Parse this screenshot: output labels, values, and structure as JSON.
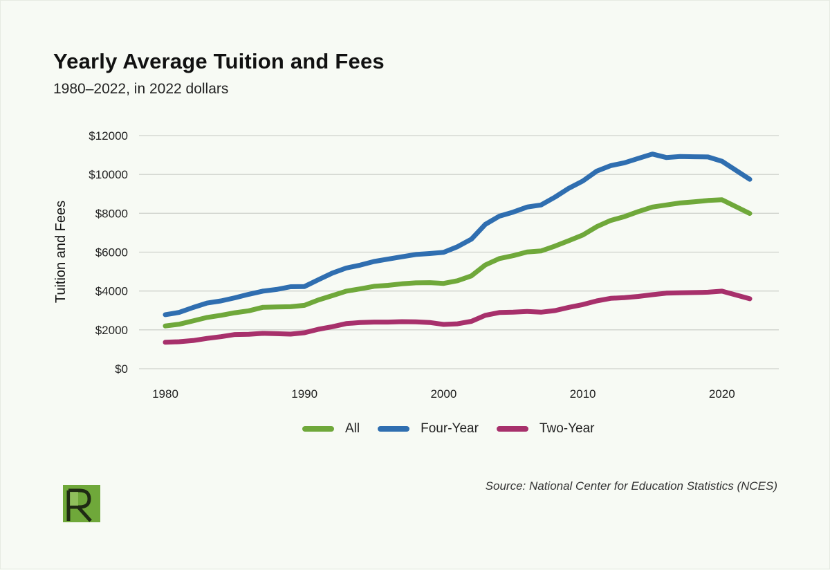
{
  "header": {
    "title": "Yearly Average Tuition and Fees",
    "subtitle": "1980–2022, in 2022 dollars"
  },
  "source": "Source: National Center for Education Statistics (NCES)",
  "logo": {
    "letter": "R",
    "color": "#6fa83a"
  },
  "colors": {
    "background": "#f7faf4",
    "grid": "#cfd2cc"
  },
  "chart_data": {
    "type": "line",
    "title": "Yearly Average Tuition and Fees",
    "subtitle": "1980–2022, in 2022 dollars",
    "xlabel": "",
    "ylabel": "Tuition and Fees",
    "xlim": [
      1980,
      2022
    ],
    "ylim": [
      0,
      12000
    ],
    "xticks": [
      1980,
      1990,
      2000,
      2010,
      2020
    ],
    "xtick_labels": [
      "1980",
      "1990",
      "2000",
      "2010",
      "2020"
    ],
    "yticks": [
      0,
      2000,
      4000,
      6000,
      8000,
      10000,
      12000
    ],
    "ytick_labels": [
      "$0",
      "$2000",
      "$4000",
      "$6000",
      "$8000",
      "$10000",
      "$12000"
    ],
    "grid": "horizontal",
    "legend_position": "bottom-center",
    "x": [
      1980,
      1981,
      1982,
      1983,
      1984,
      1985,
      1986,
      1987,
      1988,
      1989,
      1990,
      1991,
      1992,
      1993,
      1994,
      1995,
      1996,
      1997,
      1998,
      1999,
      2000,
      2001,
      2002,
      2003,
      2004,
      2005,
      2006,
      2007,
      2008,
      2009,
      2010,
      2011,
      2012,
      2013,
      2014,
      2015,
      2016,
      2017,
      2018,
      2019,
      2020,
      2022
    ],
    "series": [
      {
        "name": "All",
        "color": "#6fa83a",
        "values": [
          2200,
          2290,
          2460,
          2640,
          2750,
          2880,
          2980,
          3160,
          3180,
          3190,
          3260,
          3540,
          3760,
          3990,
          4110,
          4240,
          4290,
          4370,
          4420,
          4430,
          4390,
          4530,
          4780,
          5340,
          5670,
          5820,
          6010,
          6060,
          6310,
          6590,
          6880,
          7310,
          7630,
          7830,
          8090,
          8320,
          8430,
          8530,
          8590,
          8660,
          8700,
          7990
        ]
      },
      {
        "name": "Four-Year",
        "color": "#2f6eb0",
        "values": [
          2780,
          2900,
          3150,
          3380,
          3490,
          3650,
          3830,
          3990,
          4080,
          4220,
          4230,
          4580,
          4920,
          5180,
          5330,
          5520,
          5640,
          5760,
          5880,
          5930,
          5990,
          6280,
          6670,
          7430,
          7850,
          8060,
          8320,
          8430,
          8830,
          9290,
          9660,
          10170,
          10450,
          10600,
          10830,
          11050,
          10870,
          10920,
          10910,
          10900,
          10680,
          9750
        ]
      },
      {
        "name": "Two-Year",
        "color": "#a7306b",
        "values": [
          1360,
          1390,
          1450,
          1560,
          1650,
          1760,
          1770,
          1820,
          1800,
          1780,
          1850,
          2030,
          2160,
          2320,
          2380,
          2400,
          2400,
          2420,
          2410,
          2380,
          2280,
          2310,
          2440,
          2750,
          2890,
          2910,
          2950,
          2910,
          2990,
          3160,
          3300,
          3490,
          3620,
          3660,
          3720,
          3810,
          3890,
          3910,
          3920,
          3940,
          3990,
          3600
        ]
      }
    ]
  }
}
